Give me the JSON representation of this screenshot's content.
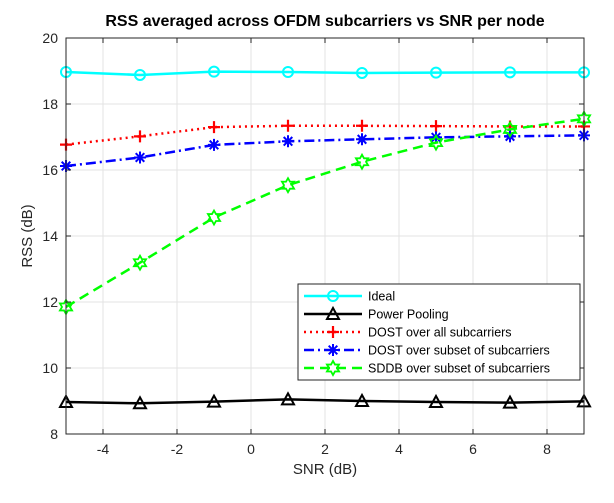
{
  "chart_data": {
    "type": "line",
    "title": "RSS averaged across OFDM subcarriers vs SNR per node",
    "xlabel": "SNR (dB)",
    "ylabel": "RSS (dB)",
    "xlim": [
      -5,
      9
    ],
    "ylim": [
      8,
      20
    ],
    "xticks": [
      -4,
      -2,
      0,
      2,
      4,
      6,
      8
    ],
    "yticks": [
      8,
      10,
      12,
      14,
      16,
      18,
      20
    ],
    "grid": true,
    "legend_position": "bottom-right",
    "x": [
      -5,
      -3,
      -1,
      1,
      3,
      5,
      7,
      9
    ],
    "series": [
      {
        "name": "Ideal",
        "values": [
          18.97,
          18.88,
          18.98,
          18.97,
          18.94,
          18.95,
          18.96,
          18.96
        ],
        "color": "#00ffff",
        "line": "solid",
        "marker": "circle"
      },
      {
        "name": "Power Pooling",
        "values": [
          8.97,
          8.93,
          8.98,
          9.05,
          9.0,
          8.97,
          8.95,
          8.99
        ],
        "color": "#000000",
        "line": "solid",
        "marker": "triangle"
      },
      {
        "name": "DOST over all subcarriers",
        "values": [
          16.77,
          17.02,
          17.3,
          17.34,
          17.34,
          17.33,
          17.32,
          17.32
        ],
        "color": "#ff0000",
        "line": "dotted",
        "marker": "plus"
      },
      {
        "name": "DOST over subset of subcarriers",
        "values": [
          16.12,
          16.38,
          16.76,
          16.87,
          16.93,
          16.99,
          17.02,
          17.05
        ],
        "color": "#0000ff",
        "line": "dashdot",
        "marker": "asterisk"
      },
      {
        "name": "SDDB over subset of subcarriers",
        "values": [
          11.85,
          13.19,
          14.56,
          15.54,
          16.25,
          16.83,
          17.23,
          17.55
        ],
        "color": "#00ff00",
        "line": "dashed",
        "marker": "hexagram"
      }
    ]
  }
}
